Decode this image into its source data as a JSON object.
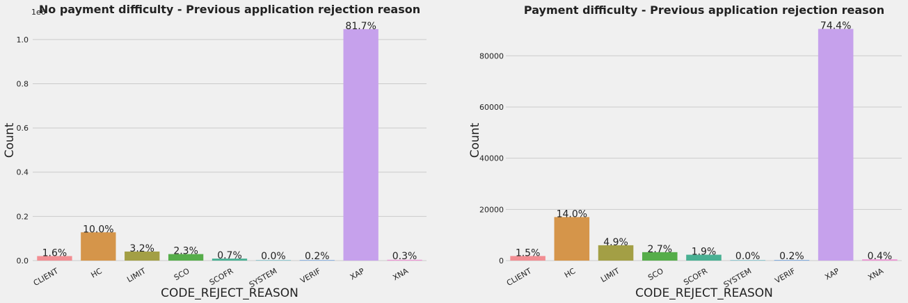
{
  "chart_data": [
    {
      "type": "bar",
      "title": "No payment difficulty - Previous application rejection reason",
      "xlabel": "CODE_REJECT_REASON",
      "ylabel": "Count",
      "y_offset_label": "1e6",
      "categories": [
        "CLIENT",
        "HC",
        "LIMIT",
        "SCO",
        "SCOFR",
        "SYSTEM",
        "VERIF",
        "XAP",
        "XNA"
      ],
      "values": [
        20600,
        128000,
        41000,
        29500,
        9000,
        200,
        2600,
        1047000,
        3800
      ],
      "data_labels": [
        "1.6%",
        "10.0%",
        "3.2%",
        "2.3%",
        "0.7%",
        "0.0%",
        "0.2%",
        "81.7%",
        "0.3%"
      ],
      "yticks": [
        0,
        200000,
        400000,
        600000,
        800000,
        1000000
      ],
      "ytick_labels": [
        "0.0",
        "0.2",
        "0.4",
        "0.6",
        "0.8",
        "1.0"
      ],
      "ylim": [
        0,
        1100000
      ],
      "grid": true,
      "colors": [
        "#f28e93",
        "#d5954a",
        "#a39f45",
        "#56ad4a",
        "#49b093",
        "#51adbc",
        "#7aa7df",
        "#c6a1ec",
        "#ee93d4"
      ]
    },
    {
      "type": "bar",
      "title": "Payment difficulty - Previous application rejection reason",
      "xlabel": "CODE_REJECT_REASON",
      "ylabel": "Count",
      "categories": [
        "CLIENT",
        "HC",
        "LIMIT",
        "SCO",
        "SCOFR",
        "SYSTEM",
        "VERIF",
        "XAP",
        "XNA"
      ],
      "values": [
        1800,
        17000,
        6000,
        3300,
        2300,
        40,
        250,
        90500,
        490
      ],
      "data_labels": [
        "1.5%",
        "14.0%",
        "4.9%",
        "2.7%",
        "1.9%",
        "0.0%",
        "0.2%",
        "74.4%",
        "0.4%"
      ],
      "yticks": [
        0,
        20000,
        40000,
        60000,
        80000
      ],
      "ytick_labels": [
        "0",
        "20000",
        "40000",
        "60000",
        "80000"
      ],
      "ylim": [
        0,
        95000
      ],
      "grid": true,
      "colors": [
        "#f28e93",
        "#d5954a",
        "#a39f45",
        "#56ad4a",
        "#49b093",
        "#51adbc",
        "#7aa7df",
        "#c6a1ec",
        "#ee93d4"
      ]
    }
  ]
}
